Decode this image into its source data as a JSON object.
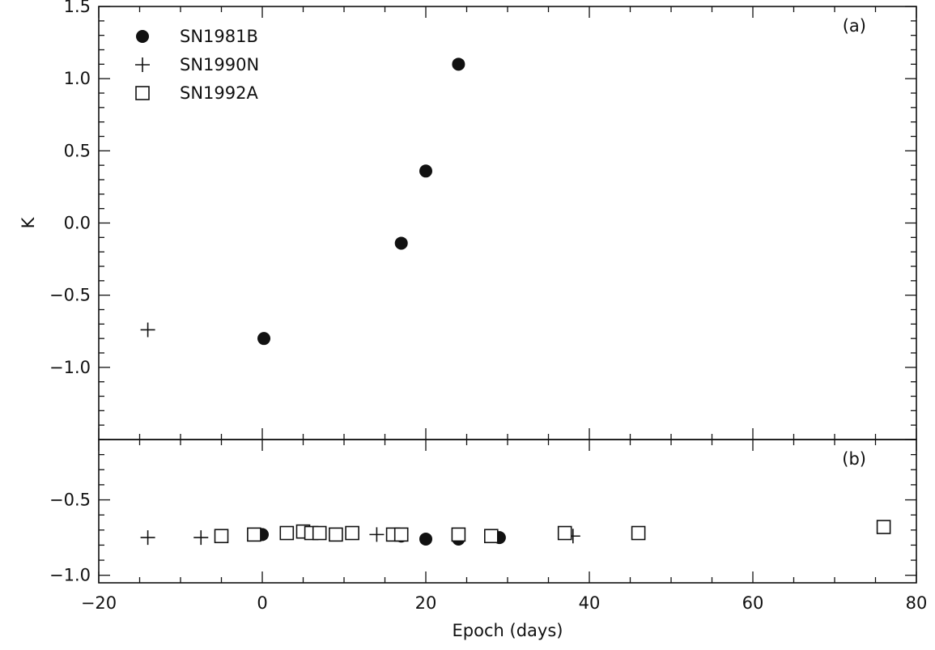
{
  "chart_data": [
    {
      "panel": "(a)",
      "type": "scatter",
      "xlim": [
        -20,
        80
      ],
      "ylim": [
        -1.5,
        1.5
      ],
      "xlabel": "",
      "ylabel": "K",
      "yticks": [
        -1.0,
        -0.5,
        0.0,
        0.5,
        1.0,
        1.5
      ],
      "ytick_labels": [
        "−1.0",
        "−0.5",
        "0.0",
        "0.5",
        "1.0",
        "1.5"
      ],
      "legend_position": "top-left",
      "series": [
        {
          "name": "SN1981B",
          "marker": "filled-circle",
          "x": [
            0.2,
            17,
            20,
            24
          ],
          "y": [
            -0.8,
            -0.14,
            0.36,
            1.1
          ]
        },
        {
          "name": "SN1990N",
          "marker": "plus",
          "x": [
            -14
          ],
          "y": [
            -0.74
          ]
        },
        {
          "name": "SN1992A",
          "marker": "open-square",
          "x": [],
          "y": []
        }
      ]
    },
    {
      "panel": "(b)",
      "type": "scatter",
      "xlim": [
        -20,
        80
      ],
      "ylim": [
        -1.05,
        -0.1
      ],
      "xlabel": "Epoch (days)",
      "ylabel": "",
      "xticks": [
        -20,
        0,
        20,
        40,
        60,
        80
      ],
      "xtick_labels": [
        "−20",
        "0",
        "20",
        "40",
        "60",
        "80"
      ],
      "yticks": [
        -1.0,
        -0.5
      ],
      "ytick_labels": [
        "−1.0",
        "−0.5"
      ],
      "series": [
        {
          "name": "SN1981B",
          "marker": "filled-circle",
          "x": [
            0,
            17,
            20,
            24,
            29
          ],
          "y": [
            -0.73,
            -0.74,
            -0.76,
            -0.76,
            -0.75
          ]
        },
        {
          "name": "SN1990N",
          "marker": "plus",
          "x": [
            -14,
            -7.5,
            14,
            38
          ],
          "y": [
            -0.75,
            -0.75,
            -0.73,
            -0.74
          ]
        },
        {
          "name": "SN1992A",
          "marker": "open-square",
          "x": [
            -5,
            -1,
            3,
            5,
            6,
            7,
            9,
            11,
            16,
            17,
            24,
            28,
            37,
            46,
            76
          ],
          "y": [
            -0.74,
            -0.73,
            -0.72,
            -0.71,
            -0.72,
            -0.72,
            -0.73,
            -0.72,
            -0.73,
            -0.73,
            -0.73,
            -0.74,
            -0.72,
            -0.72,
            -0.68
          ]
        }
      ]
    }
  ]
}
